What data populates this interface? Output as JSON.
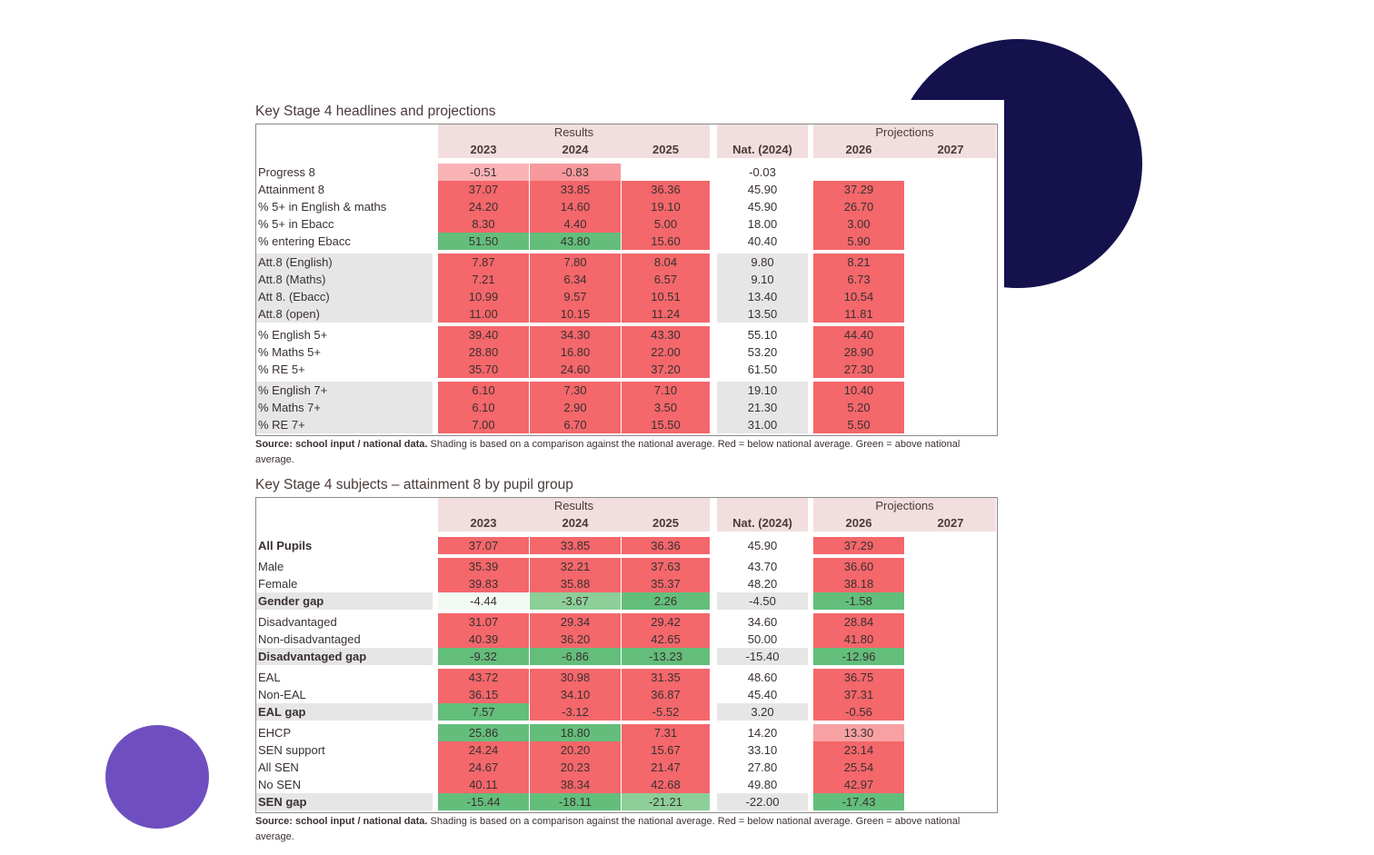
{
  "tables": [
    {
      "title": "Key Stage 4 headlines and projections",
      "header": {
        "results": "Results",
        "projections": "Projections",
        "columns": [
          "2023",
          "2024",
          "2025",
          "Nat. (2024)",
          "2026",
          "2027"
        ]
      },
      "groups": [
        {
          "rows": [
            {
              "label": "Progress 8",
              "values": [
                "-0.51",
                "-0.83",
                null,
                "-0.03",
                null,
                null
              ],
              "shading": [
                "#f9b3b5",
                "#f7999c",
                null,
                null,
                null,
                null
              ]
            },
            {
              "label": "Attainment 8",
              "values": [
                "37.07",
                "33.85",
                "36.36",
                "45.90",
                "37.29",
                null
              ],
              "shading": [
                "#f4676b",
                "#f4676b",
                "#f4676b",
                null,
                "#f4676b",
                null
              ]
            },
            {
              "label": "% 5+ in English & maths",
              "values": [
                "24.20",
                "14.60",
                "19.10",
                "45.90",
                "26.70",
                null
              ],
              "shading": [
                "#f4676b",
                "#f4676b",
                "#f4676b",
                null,
                "#f4676b",
                null
              ]
            },
            {
              "label": "% 5+ in Ebacc",
              "values": [
                "8.30",
                "4.40",
                "5.00",
                "18.00",
                "3.00",
                null
              ],
              "shading": [
                "#f4676b",
                "#f4676b",
                "#f4676b",
                null,
                "#f4676b",
                null
              ]
            },
            {
              "label": "% entering Ebacc",
              "values": [
                "51.50",
                "43.80",
                "15.60",
                "40.40",
                "5.90",
                null
              ],
              "shading": [
                "#63be7b",
                "#63be7b",
                "#f4676b",
                null,
                "#f4676b",
                null
              ]
            }
          ]
        },
        {
          "rows": [
            {
              "label": "Att.8 (English)",
              "values": [
                "7.87",
                "7.80",
                "8.04",
                "9.80",
                "8.21",
                null
              ],
              "shading": [
                "#f4676b",
                "#f4676b",
                "#f4676b",
                null,
                "#f4676b",
                null
              ]
            },
            {
              "label": "Att.8 (Maths)",
              "values": [
                "7.21",
                "6.34",
                "6.57",
                "9.10",
                "6.73",
                null
              ],
              "shading": [
                "#f4676b",
                "#f4676b",
                "#f4676b",
                null,
                "#f4676b",
                null
              ]
            },
            {
              "label": "Att 8. (Ebacc)",
              "values": [
                "10.99",
                "9.57",
                "10.51",
                "13.40",
                "10.54",
                null
              ],
              "shading": [
                "#f4676b",
                "#f4676b",
                "#f4676b",
                null,
                "#f4676b",
                null
              ]
            },
            {
              "label": "Att.8 (open)",
              "values": [
                "11.00",
                "10.15",
                "11.24",
                "13.50",
                "11.81",
                null
              ],
              "shading": [
                "#f4676b",
                "#f4676b",
                "#f4676b",
                null,
                "#f4676b",
                null
              ]
            }
          ]
        },
        {
          "rows": [
            {
              "label": "% English 5+",
              "values": [
                "39.40",
                "34.30",
                "43.30",
                "55.10",
                "44.40",
                null
              ],
              "shading": [
                "#f4676b",
                "#f4676b",
                "#f4676b",
                null,
                "#f4676b",
                null
              ]
            },
            {
              "label": "% Maths 5+",
              "values": [
                "28.80",
                "16.80",
                "22.00",
                "53.20",
                "28.90",
                null
              ],
              "shading": [
                "#f4676b",
                "#f4676b",
                "#f4676b",
                null,
                "#f4676b",
                null
              ]
            },
            {
              "label": "% RE 5+",
              "values": [
                "35.70",
                "24.60",
                "37.20",
                "61.50",
                "27.30",
                null
              ],
              "shading": [
                "#f4676b",
                "#f4676b",
                "#f4676b",
                null,
                "#f4676b",
                null
              ]
            }
          ]
        },
        {
          "rows": [
            {
              "label": "% English 7+",
              "values": [
                "6.10",
                "7.30",
                "7.10",
                "19.10",
                "10.40",
                null
              ],
              "shading": [
                "#f4676b",
                "#f4676b",
                "#f4676b",
                null,
                "#f4676b",
                null
              ]
            },
            {
              "label": "% Maths 7+",
              "values": [
                "6.10",
                "2.90",
                "3.50",
                "21.30",
                "5.20",
                null
              ],
              "shading": [
                "#f4676b",
                "#f4676b",
                "#f4676b",
                null,
                "#f4676b",
                null
              ]
            },
            {
              "label": "% RE 7+",
              "values": [
                "7.00",
                "6.70",
                "15.50",
                "31.00",
                "5.50",
                null
              ],
              "shading": [
                "#f4676b",
                "#f4676b",
                "#f4676b",
                null,
                "#f4676b",
                null
              ]
            }
          ]
        }
      ],
      "note": {
        "lead": "Source: school input / national data.",
        "text": "Shading is based on a comparison against the national average. Red = below national average. Green = above national average."
      }
    },
    {
      "title": "Key Stage 4 subjects – attainment 8 by pupil group",
      "header": {
        "results": "Results",
        "projections": "Projections",
        "columns": [
          "2023",
          "2024",
          "2025",
          "Nat. (2024)",
          "2026",
          "2027"
        ]
      },
      "groups": [
        {
          "rows": [
            {
              "label": "All Pupils",
              "values": [
                "37.07",
                "33.85",
                "36.36",
                "45.90",
                "37.29",
                null
              ],
              "shading": [
                "#f4676b",
                "#f4676b",
                "#f4676b",
                null,
                "#f4676b",
                null
              ]
            }
          ]
        },
        {
          "rows": [
            {
              "label": "Male",
              "values": [
                "35.39",
                "32.21",
                "37.63",
                "43.70",
                "36.60",
                null
              ],
              "shading": [
                "#f4676b",
                "#f4676b",
                "#f4676b",
                null,
                "#f4676b",
                null
              ]
            },
            {
              "label": "Female",
              "values": [
                "39.83",
                "35.88",
                "35.37",
                "48.20",
                "38.18",
                null
              ],
              "shading": [
                "#f4676b",
                "#f4676b",
                "#f4676b",
                null,
                "#f4676b",
                null
              ]
            },
            {
              "label": "Gender gap",
              "values": [
                "-4.44",
                "-3.67",
                "2.26",
                "-4.50",
                "-1.58",
                null
              ],
              "shading": [
                "#f2faf3",
                "#8ccf98",
                "#63be7b",
                null,
                "#63be7b",
                null
              ]
            }
          ]
        },
        {
          "rows": [
            {
              "label": "Disadvantaged",
              "values": [
                "31.07",
                "29.34",
                "29.42",
                "34.60",
                "28.84",
                null
              ],
              "shading": [
                "#f4676b",
                "#f4676b",
                "#f4676b",
                null,
                "#f4676b",
                null
              ]
            },
            {
              "label": "Non-disadvantaged",
              "values": [
                "40.39",
                "36.20",
                "42.65",
                "50.00",
                "41.80",
                null
              ],
              "shading": [
                "#f4676b",
                "#f4676b",
                "#f4676b",
                null,
                "#f4676b",
                null
              ]
            },
            {
              "label": "Disadvantaged gap",
              "values": [
                "-9.32",
                "-6.86",
                "-13.23",
                "-15.40",
                "-12.96",
                null
              ],
              "shading": [
                "#63be7b",
                "#63be7b",
                "#63be7b",
                null,
                "#63be7b",
                null
              ]
            }
          ]
        },
        {
          "rows": [
            {
              "label": "EAL",
              "values": [
                "43.72",
                "30.98",
                "31.35",
                "48.60",
                "36.75",
                null
              ],
              "shading": [
                "#f4676b",
                "#f4676b",
                "#f4676b",
                null,
                "#f4676b",
                null
              ]
            },
            {
              "label": "Non-EAL",
              "values": [
                "36.15",
                "34.10",
                "36.87",
                "45.40",
                "37.31",
                null
              ],
              "shading": [
                "#f4676b",
                "#f4676b",
                "#f4676b",
                null,
                "#f4676b",
                null
              ]
            },
            {
              "label": "EAL gap",
              "values": [
                "7.57",
                "-3.12",
                "-5.52",
                "3.20",
                "-0.56",
                null
              ],
              "shading": [
                "#63be7b",
                "#f4676b",
                "#f4676b",
                null,
                "#f4676b",
                null
              ]
            }
          ]
        },
        {
          "rows": [
            {
              "label": "EHCP",
              "values": [
                "25.86",
                "18.80",
                "7.31",
                "14.20",
                "13.30",
                null
              ],
              "shading": [
                "#63be7b",
                "#63be7b",
                "#f4676b",
                null,
                "#f7a1a3",
                null
              ]
            },
            {
              "label": "SEN support",
              "values": [
                "24.24",
                "20.20",
                "15.67",
                "33.10",
                "23.14",
                null
              ],
              "shading": [
                "#f4676b",
                "#f4676b",
                "#f4676b",
                null,
                "#f4676b",
                null
              ]
            },
            {
              "label": "All SEN",
              "values": [
                "24.67",
                "20.23",
                "21.47",
                "27.80",
                "25.54",
                null
              ],
              "shading": [
                "#f4676b",
                "#f4676b",
                "#f4676b",
                null,
                "#f4676b",
                null
              ]
            },
            {
              "label": "No SEN",
              "values": [
                "40.11",
                "38.34",
                "42.68",
                "49.80",
                "42.97",
                null
              ],
              "shading": [
                "#f4676b",
                "#f4676b",
                "#f4676b",
                null,
                "#f4676b",
                null
              ]
            },
            {
              "label": "SEN gap",
              "values": [
                "-15.44",
                "-18.11",
                "-21.21",
                "-22.00",
                "-17.43",
                null
              ],
              "shading": [
                "#63be7b",
                "#63be7b",
                "#8ccf98",
                null,
                "#63be7b",
                null
              ]
            }
          ]
        }
      ],
      "note": {
        "lead": "Source: school input / national data.",
        "text": "Shading is based on a comparison against the national average. Red = below national average. Green = above national average."
      }
    }
  ]
}
